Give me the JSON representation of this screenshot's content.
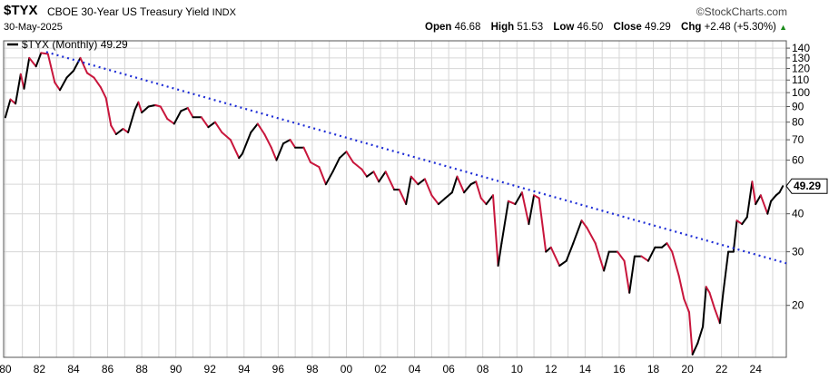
{
  "header": {
    "symbol": "$TYX",
    "name": "CBOE 30-Year US Treasury Yield",
    "exchange": "INDX",
    "date": "30-May-2025",
    "brand": "©StockCharts.com",
    "open_label": "Open",
    "open": "46.68",
    "high_label": "High",
    "high": "51.53",
    "low_label": "Low",
    "low": "46.50",
    "close_label": "Close",
    "close": "49.29",
    "chg_label": "Chg",
    "chg": "+2.48 (+5.30%)",
    "up_arrow": "▲"
  },
  "colors": {
    "up": "#000000",
    "down": "#c8163c",
    "trend": "#1f2ed6",
    "grid": "#d6d6d6",
    "arrow": "#1a8a1a"
  },
  "chart_data": {
    "type": "line",
    "legend": "$TYX (Monthly) 49.29",
    "price_tag": "49.29",
    "scale": "log",
    "ylim": [
      13.5,
      148
    ],
    "y_ticks": [
      140,
      130,
      120,
      110,
      100,
      90,
      80,
      70,
      60,
      50,
      40,
      30,
      20
    ],
    "y_tick_labels": [
      "140",
      "130",
      "120",
      "110",
      "100",
      "90",
      "80",
      "70",
      "60",
      "",
      "40",
      "30",
      "20"
    ],
    "xlim": [
      1979.9,
      2025.8
    ],
    "x_tick_labels": [
      "80",
      "82",
      "84",
      "86",
      "88",
      "90",
      "92",
      "94",
      "96",
      "98",
      "00",
      "02",
      "04",
      "06",
      "08",
      "10",
      "12",
      "14",
      "16",
      "18",
      "20",
      "22",
      "24"
    ],
    "trendline": {
      "from": [
        1982.4,
        136
      ],
      "to": [
        2025.8,
        27.5
      ]
    },
    "series": [
      {
        "points": [
          [
            1980.0,
            83
          ],
          [
            1980.3,
            95
          ],
          [
            1980.6,
            92
          ],
          [
            1980.9,
            115
          ],
          [
            1981.1,
            103
          ],
          [
            1981.4,
            130
          ],
          [
            1981.8,
            122
          ],
          [
            1982.1,
            135
          ],
          [
            1982.5,
            134
          ],
          [
            1982.9,
            108
          ],
          [
            1983.2,
            102
          ],
          [
            1983.6,
            112
          ],
          [
            1984.0,
            118
          ],
          [
            1984.4,
            130
          ],
          [
            1984.8,
            116
          ],
          [
            1985.2,
            112
          ],
          [
            1985.6,
            104
          ],
          [
            1985.9,
            96
          ],
          [
            1986.2,
            78
          ],
          [
            1986.5,
            73
          ],
          [
            1986.9,
            76
          ],
          [
            1987.2,
            74
          ],
          [
            1987.6,
            88
          ],
          [
            1987.8,
            93
          ],
          [
            1988.0,
            86
          ],
          [
            1988.4,
            90
          ],
          [
            1988.8,
            91
          ],
          [
            1989.1,
            90
          ],
          [
            1989.5,
            82
          ],
          [
            1989.9,
            79
          ],
          [
            1990.3,
            87
          ],
          [
            1990.7,
            89
          ],
          [
            1991.0,
            83
          ],
          [
            1991.5,
            83
          ],
          [
            1991.9,
            77
          ],
          [
            1992.3,
            80
          ],
          [
            1992.7,
            74
          ],
          [
            1993.2,
            70
          ],
          [
            1993.7,
            61
          ],
          [
            1993.9,
            63
          ],
          [
            1994.4,
            74
          ],
          [
            1994.8,
            79
          ],
          [
            1995.2,
            73
          ],
          [
            1995.6,
            66
          ],
          [
            1995.9,
            60
          ],
          [
            1996.3,
            68
          ],
          [
            1996.7,
            70
          ],
          [
            1997.0,
            66
          ],
          [
            1997.5,
            66
          ],
          [
            1997.9,
            59
          ],
          [
            1998.4,
            57
          ],
          [
            1998.8,
            50
          ],
          [
            1999.2,
            55
          ],
          [
            1999.6,
            61
          ],
          [
            2000.0,
            64
          ],
          [
            2000.4,
            59
          ],
          [
            2000.9,
            56
          ],
          [
            2001.2,
            53
          ],
          [
            2001.6,
            55
          ],
          [
            2001.9,
            51
          ],
          [
            2002.3,
            55
          ],
          [
            2002.8,
            48
          ],
          [
            2003.1,
            48
          ],
          [
            2003.5,
            43
          ],
          [
            2003.8,
            53
          ],
          [
            2004.2,
            50
          ],
          [
            2004.6,
            52
          ],
          [
            2005.0,
            46
          ],
          [
            2005.4,
            43
          ],
          [
            2005.8,
            45
          ],
          [
            2006.2,
            47
          ],
          [
            2006.5,
            53
          ],
          [
            2006.9,
            47
          ],
          [
            2007.3,
            50
          ],
          [
            2007.6,
            51
          ],
          [
            2007.9,
            45
          ],
          [
            2008.2,
            43
          ],
          [
            2008.6,
            46
          ],
          [
            2008.9,
            27
          ],
          [
            2009.1,
            32
          ],
          [
            2009.5,
            44
          ],
          [
            2009.9,
            43
          ],
          [
            2010.3,
            47
          ],
          [
            2010.7,
            37
          ],
          [
            2011.0,
            46
          ],
          [
            2011.3,
            45
          ],
          [
            2011.7,
            30
          ],
          [
            2012.0,
            31
          ],
          [
            2012.5,
            27
          ],
          [
            2012.9,
            28
          ],
          [
            2013.3,
            32
          ],
          [
            2013.8,
            38
          ],
          [
            2014.1,
            36
          ],
          [
            2014.6,
            32
          ],
          [
            2015.1,
            26
          ],
          [
            2015.4,
            30
          ],
          [
            2015.9,
            30
          ],
          [
            2016.3,
            28
          ],
          [
            2016.6,
            22
          ],
          [
            2016.9,
            29
          ],
          [
            2017.3,
            29
          ],
          [
            2017.7,
            28
          ],
          [
            2018.1,
            31
          ],
          [
            2018.5,
            31
          ],
          [
            2018.8,
            32
          ],
          [
            2019.1,
            30
          ],
          [
            2019.5,
            25
          ],
          [
            2019.8,
            21
          ],
          [
            2020.1,
            19
          ],
          [
            2020.3,
            13.8
          ],
          [
            2020.6,
            15
          ],
          [
            2020.9,
            17
          ],
          [
            2021.1,
            23
          ],
          [
            2021.3,
            22
          ],
          [
            2021.6,
            19.5
          ],
          [
            2021.9,
            17.5
          ],
          [
            2022.1,
            22
          ],
          [
            2022.4,
            30
          ],
          [
            2022.7,
            30
          ],
          [
            2022.9,
            38
          ],
          [
            2023.2,
            37
          ],
          [
            2023.5,
            39
          ],
          [
            2023.8,
            51
          ],
          [
            2024.0,
            43
          ],
          [
            2024.3,
            46
          ],
          [
            2024.7,
            40
          ],
          [
            2024.9,
            44
          ],
          [
            2025.2,
            46
          ],
          [
            2025.4,
            47
          ],
          [
            2025.6,
            49.3
          ]
        ]
      }
    ]
  }
}
